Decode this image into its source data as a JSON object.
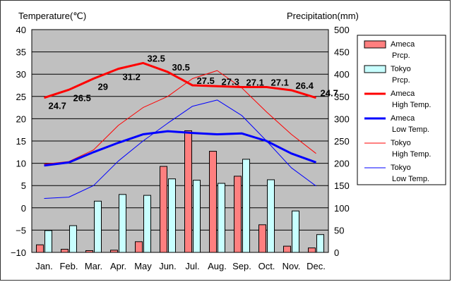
{
  "chart_data": {
    "type": "bar",
    "left_axis_title": "Temperature(℃)",
    "right_axis_title": "Precipitation(mm)",
    "categories": [
      "Jan.",
      "Feb.",
      "Mar.",
      "Apr.",
      "May",
      "Jun.",
      "Jul.",
      "Aug.",
      "Sep.",
      "Oct.",
      "Nov.",
      "Dec."
    ],
    "ylim_left": [
      -10,
      40
    ],
    "ylim_right": [
      0,
      500
    ],
    "left_ticks": [
      "40",
      "35",
      "30",
      "25",
      "20",
      "15",
      "10",
      "5",
      "0",
      "−5",
      "−10"
    ],
    "right_ticks": [
      "500",
      "450",
      "400",
      "350",
      "300",
      "250",
      "200",
      "150",
      "100",
      "50",
      "0"
    ],
    "grid": true,
    "plot_background": "#c0c0c0",
    "legend_position": "right",
    "bar_series": [
      {
        "key": "ameca_prcp",
        "legend": [
          "Ameca",
          "Prcp."
        ],
        "color": "#ff7f7f",
        "values": [
          17,
          7,
          4,
          5,
          24,
          193,
          273,
          227,
          171,
          62,
          14,
          10
        ]
      },
      {
        "key": "tokyo_prcp",
        "legend": [
          "Tokyo",
          "Prcp."
        ],
        "color": "#c8ffff",
        "values": [
          49,
          60,
          115,
          130,
          128,
          165,
          162,
          155,
          209,
          163,
          93,
          40
        ]
      }
    ],
    "line_series": [
      {
        "key": "ameca_high",
        "legend": [
          "Ameca",
          "High Temp."
        ],
        "color": "#ff0000",
        "width": 3,
        "values": [
          24.7,
          26.5,
          29.0,
          31.2,
          32.5,
          30.5,
          27.5,
          27.3,
          27.1,
          27.1,
          26.4,
          24.7
        ]
      },
      {
        "key": "ameca_low",
        "legend": [
          "Ameca",
          "Low Temp."
        ],
        "color": "#0000ff",
        "width": 3,
        "values": [
          9.5,
          10.2,
          12.5,
          14.6,
          16.5,
          17.2,
          16.8,
          16.5,
          16.7,
          15.0,
          12.2,
          10.2
        ]
      },
      {
        "key": "tokyo_high",
        "legend": [
          "Tokyo",
          "High Temp."
        ],
        "color": "#ff0000",
        "width": 1,
        "values": [
          9.8,
          10.4,
          13.0,
          18.5,
          22.5,
          25.0,
          29.0,
          30.8,
          26.9,
          21.5,
          16.5,
          12.2
        ]
      },
      {
        "key": "tokyo_low",
        "legend": [
          "Tokyo",
          "Low Temp."
        ],
        "color": "#0000ff",
        "width": 1,
        "values": [
          2.1,
          2.4,
          5.0,
          10.5,
          15.0,
          19.0,
          22.8,
          24.2,
          20.7,
          15.0,
          9.0,
          4.9
        ]
      }
    ],
    "data_labels": [
      "24.7",
      "26.5",
      "29",
      "31.2",
      "32.5",
      "30.5",
      "27.5",
      "27.3",
      "27.1",
      "27.1",
      "26.4",
      "24.7"
    ]
  }
}
